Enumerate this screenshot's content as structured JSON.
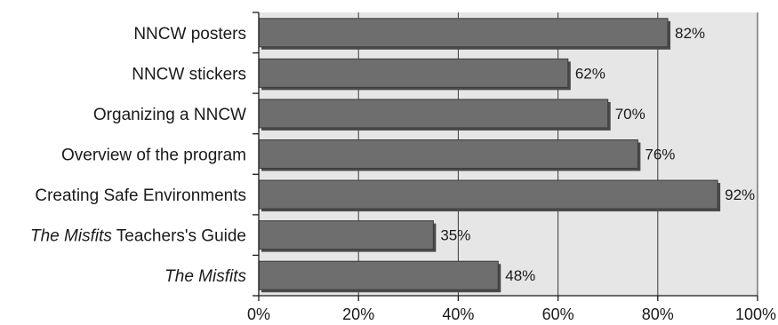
{
  "chart_data": {
    "type": "bar",
    "orientation": "horizontal",
    "categories": [
      [
        {
          "text": "NNCW posters",
          "italic": false
        }
      ],
      [
        {
          "text": "NNCW stickers",
          "italic": false
        }
      ],
      [
        {
          "text": "Organizing a NNCW",
          "italic": false
        }
      ],
      [
        {
          "text": "Overview of the program",
          "italic": false
        }
      ],
      [
        {
          "text": "Creating Safe Environments",
          "italic": false
        }
      ],
      [
        {
          "text": "The Misfits",
          "italic": true
        },
        {
          "text": " Teachers's Guide",
          "italic": false
        }
      ],
      [
        {
          "text": "The Misfits",
          "italic": true
        }
      ]
    ],
    "values": [
      82,
      62,
      70,
      76,
      92,
      35,
      48
    ],
    "value_labels": [
      "82%",
      "62%",
      "70%",
      "76%",
      "92%",
      "35%",
      "48%"
    ],
    "xlim": [
      0,
      100
    ],
    "x_ticks": [
      0,
      20,
      40,
      60,
      80,
      100
    ],
    "x_tick_labels": [
      "0%",
      "20%",
      "40%",
      "60%",
      "80%",
      "100%"
    ],
    "grid": "vertical",
    "legend": "none",
    "title": "",
    "xlabel": "",
    "ylabel": ""
  },
  "colors": {
    "plot_background": "#e6e6e6",
    "bar_fill": "#6e6e6e",
    "bar_edge": "#3c3c3c",
    "bar_shadow": "#4a4a4a",
    "grid_line": "#3a3a3a",
    "axis_line": "#1a1a1a"
  }
}
